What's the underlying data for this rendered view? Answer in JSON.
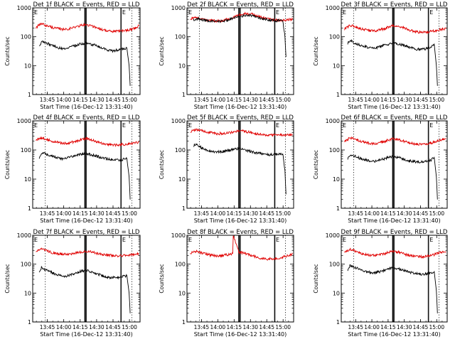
{
  "chart_data": {
    "type": "line",
    "layout": "grid-3x3",
    "x_axis": {
      "label": "Start Time (16-Dec-12 13:31:40)",
      "tick_labels": [
        "13:45",
        "14:00",
        "14:15",
        "14:30",
        "14:45",
        "15:00"
      ],
      "tick_minutes": [
        13.33,
        28.33,
        43.33,
        58.33,
        73.33,
        88.33
      ],
      "range_minutes": [
        0,
        98
      ]
    },
    "y_axis": {
      "label": "Counts/sec",
      "scale": "log",
      "range": [
        1,
        1000
      ],
      "tick_labels": [
        "1",
        "10",
        "100",
        "1000"
      ]
    },
    "markers": {
      "dotted_minutes": [
        11.5,
        90.5
      ],
      "solid_minutes": [
        47.4,
        47.9,
        48.5,
        49.1,
        80.4,
        80.9
      ],
      "corner_labels": [
        "E",
        "E"
      ]
    },
    "panels": [
      {
        "title": "Det 1f BLACK = Events, RED = LLD",
        "series": [
          {
            "color": "#e00000",
            "x": [
              3,
              8,
              13,
              18,
              23,
              28,
              33,
              38,
              43,
              48,
              53,
              58,
              63,
              68,
              73,
              78,
              83,
              88,
              93,
              97
            ],
            "y": [
              210,
              280,
              240,
              210,
              190,
              180,
              190,
              210,
              240,
              260,
              240,
              210,
              180,
              160,
              150,
              155,
              160,
              175,
              195,
              240
            ]
          },
          {
            "color": "#000000",
            "x": [
              6,
              8,
              13,
              18,
              23,
              28,
              33,
              38,
              43,
              48,
              53,
              58,
              63,
              68,
              73,
              78,
              83,
              86,
              88,
              89
            ],
            "y": [
              45,
              70,
              60,
              50,
              42,
              38,
              42,
              48,
              55,
              60,
              55,
              50,
              40,
              35,
              32,
              35,
              38,
              40,
              10,
              2
            ]
          }
        ]
      },
      {
        "title": "Det 2f BLACK = Events, RED = LLD",
        "series": [
          {
            "color": "#e00000",
            "x": [
              3,
              8,
              13,
              18,
              23,
              28,
              33,
              38,
              43,
              48,
              53,
              58,
              63,
              68,
              73,
              78,
              83,
              88,
              93,
              97
            ],
            "y": [
              420,
              450,
              420,
              380,
              360,
              350,
              370,
              400,
              480,
              560,
              620,
              640,
              550,
              480,
              420,
              390,
              380,
              380,
              390,
              400
            ]
          },
          {
            "color": "#000000",
            "x": [
              6,
              8,
              13,
              18,
              23,
              28,
              33,
              38,
              43,
              48,
              53,
              58,
              63,
              68,
              73,
              78,
              83,
              88,
              90,
              91
            ],
            "y": [
              380,
              420,
              400,
              360,
              340,
              330,
              350,
              380,
              440,
              500,
              540,
              560,
              490,
              430,
              400,
              370,
              360,
              360,
              100,
              20
            ]
          }
        ]
      },
      {
        "title": "Det 3f BLACK = Events, RED = LLD",
        "series": [
          {
            "color": "#e00000",
            "x": [
              3,
              8,
              13,
              18,
              23,
              28,
              33,
              38,
              43,
              48,
              53,
              58,
              63,
              68,
              73,
              78,
              83,
              88,
              93,
              97
            ],
            "y": [
              180,
              250,
              220,
              190,
              170,
              160,
              165,
              180,
              210,
              240,
              230,
              200,
              170,
              150,
              140,
              145,
              150,
              165,
              180,
              190
            ]
          },
          {
            "color": "#000000",
            "x": [
              6,
              8,
              13,
              18,
              23,
              28,
              33,
              38,
              43,
              48,
              53,
              58,
              63,
              68,
              73,
              78,
              83,
              86,
              88,
              89
            ],
            "y": [
              60,
              75,
              60,
              50,
              45,
              40,
              42,
              48,
              55,
              60,
              55,
              50,
              42,
              38,
              36,
              38,
              45,
              55,
              10,
              2
            ]
          }
        ]
      },
      {
        "title": "Det 4f BLACK = Events, RED = LLD",
        "series": [
          {
            "color": "#e00000",
            "x": [
              3,
              8,
              13,
              18,
              23,
              28,
              33,
              38,
              43,
              48,
              53,
              58,
              63,
              68,
              73,
              78,
              83,
              88,
              93,
              97
            ],
            "y": [
              220,
              260,
              230,
              200,
              180,
              170,
              175,
              190,
              220,
              250,
              230,
              200,
              170,
              155,
              150,
              150,
              155,
              165,
              175,
              185
            ]
          },
          {
            "color": "#000000",
            "x": [
              6,
              8,
              13,
              18,
              23,
              28,
              33,
              38,
              43,
              48,
              53,
              58,
              63,
              68,
              73,
              78,
              83,
              86,
              88,
              89
            ],
            "y": [
              55,
              80,
              70,
              60,
              55,
              50,
              55,
              62,
              70,
              75,
              70,
              62,
              55,
              50,
              45,
              45,
              48,
              50,
              12,
              2
            ]
          }
        ]
      },
      {
        "title": "Det 5f BLACK = Events, RED = LLD",
        "series": [
          {
            "color": "#e00000",
            "x": [
              3,
              8,
              13,
              18,
              23,
              28,
              33,
              38,
              43,
              48,
              53,
              58,
              63,
              68,
              73,
              78,
              83,
              88,
              93,
              97
            ],
            "y": [
              420,
              500,
              460,
              420,
              380,
              360,
              370,
              390,
              420,
              450,
              430,
              400,
              360,
              340,
              320,
              320,
              330,
              340,
              330,
              320
            ]
          },
          {
            "color": "#000000",
            "x": [
              6,
              8,
              13,
              18,
              23,
              28,
              33,
              38,
              43,
              48,
              53,
              58,
              63,
              68,
              73,
              78,
              83,
              88,
              90,
              91
            ],
            "y": [
              140,
              160,
              120,
              100,
              90,
              85,
              88,
              95,
              105,
              110,
              100,
              90,
              80,
              75,
              70,
              70,
              72,
              75,
              20,
              3
            ]
          }
        ]
      },
      {
        "title": "Det 6f BLACK = Events, RED = LLD",
        "series": [
          {
            "color": "#e00000",
            "x": [
              3,
              8,
              13,
              18,
              23,
              28,
              33,
              38,
              43,
              48,
              53,
              58,
              63,
              68,
              73,
              78,
              83,
              88,
              93,
              97
            ],
            "y": [
              190,
              260,
              230,
              200,
              175,
              165,
              170,
              185,
              215,
              245,
              230,
              200,
              175,
              160,
              155,
              160,
              170,
              200,
              230,
              240
            ]
          },
          {
            "color": "#000000",
            "x": [
              6,
              8,
              13,
              18,
              23,
              28,
              33,
              38,
              43,
              48,
              53,
              58,
              63,
              68,
              73,
              78,
              83,
              86,
              88,
              89
            ],
            "y": [
              50,
              70,
              60,
              50,
              45,
              40,
              42,
              48,
              55,
              60,
              55,
              48,
              42,
              40,
              38,
              40,
              45,
              55,
              12,
              2
            ]
          }
        ]
      },
      {
        "title": "Det 7f BLACK = Events, RED = LLD",
        "series": [
          {
            "color": "#e00000",
            "x": [
              3,
              8,
              13,
              18,
              23,
              28,
              33,
              38,
              43,
              48,
              53,
              58,
              63,
              68,
              73,
              78,
              83,
              88,
              93,
              97
            ],
            "y": [
              270,
              330,
              290,
              250,
              230,
              220,
              225,
              240,
              260,
              280,
              265,
              240,
              220,
              210,
              200,
              195,
              200,
              210,
              220,
              230
            ]
          },
          {
            "color": "#000000",
            "x": [
              6,
              8,
              13,
              18,
              23,
              28,
              33,
              38,
              43,
              48,
              53,
              58,
              63,
              68,
              73,
              78,
              83,
              86,
              88,
              89
            ],
            "y": [
              55,
              75,
              60,
              50,
              42,
              38,
              40,
              46,
              55,
              62,
              55,
              48,
              40,
              36,
              34,
              35,
              38,
              40,
              10,
              2
            ]
          }
        ]
      },
      {
        "title": "Det 8f BLACK = Events, RED = LLD",
        "series": [
          {
            "color": "#e00000",
            "x": [
              3,
              8,
              13,
              18,
              23,
              28,
              33,
              38,
              42,
              42.5,
              48,
              53,
              58,
              63,
              68,
              73,
              78,
              83,
              88,
              93,
              97
            ],
            "y": [
              240,
              280,
              250,
              220,
              200,
              190,
              200,
              215,
              230,
              1000,
              260,
              240,
              210,
              180,
              160,
              150,
              155,
              160,
              175,
              195,
              230
            ]
          }
        ]
      },
      {
        "title": "Det 9f BLACK = Events, RED = LLD",
        "series": [
          {
            "color": "#e00000",
            "x": [
              3,
              8,
              13,
              18,
              23,
              28,
              33,
              38,
              43,
              48,
              53,
              58,
              63,
              68,
              73,
              78,
              83,
              88,
              93,
              97
            ],
            "y": [
              250,
              320,
              280,
              240,
              210,
              200,
              205,
              220,
              250,
              280,
              260,
              230,
              200,
              185,
              180,
              185,
              195,
              230,
              260,
              270
            ]
          },
          {
            "color": "#000000",
            "x": [
              6,
              8,
              13,
              18,
              23,
              28,
              33,
              38,
              43,
              48,
              53,
              58,
              63,
              68,
              73,
              78,
              83,
              86,
              88,
              89
            ],
            "y": [
              60,
              90,
              75,
              62,
              55,
              50,
              52,
              58,
              68,
              75,
              68,
              60,
              52,
              48,
              45,
              46,
              50,
              55,
              12,
              2
            ]
          }
        ]
      }
    ]
  }
}
